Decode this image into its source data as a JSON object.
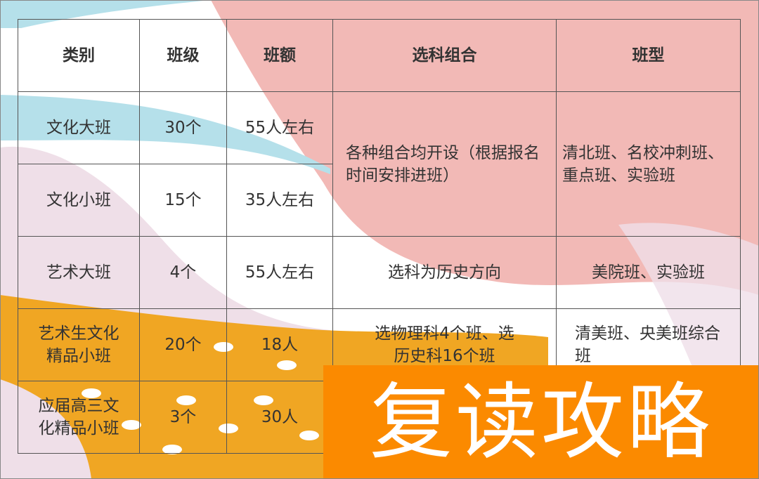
{
  "table": {
    "headers": [
      "类别",
      "班级",
      "班额",
      "选科组合",
      "班型"
    ],
    "rows": [
      {
        "category": "文化大班",
        "classes": "30个",
        "size": "55人左右"
      },
      {
        "category": "文化小班",
        "classes": "15个",
        "size": "35人左右"
      },
      {
        "category": "艺术大班",
        "classes": "4个",
        "size": "55人左右",
        "subjects": "选科为历史方向",
        "type": "美院班、实验班"
      },
      {
        "category": "艺术生文化精品小班",
        "classes": "20个",
        "size": "18人",
        "subjects": "选物理科4个班、选历史科16个班",
        "type": "清美班、央美班综合班"
      },
      {
        "category": "应届高三文化精品小班",
        "classes": "3个",
        "size": "30人"
      }
    ],
    "merged_subjects": "各种组合均开设（根据报名时间安排进班）",
    "merged_type": "清北班、名校冲刺班、重点班、实验班"
  },
  "banner": {
    "text": "复读攻略"
  },
  "colors": {
    "pink": "#f2b9b6",
    "blue": "#b5e0ea",
    "lavender": "#efdfe8",
    "orange": "#f0a623",
    "banner": "#fb8a00"
  }
}
